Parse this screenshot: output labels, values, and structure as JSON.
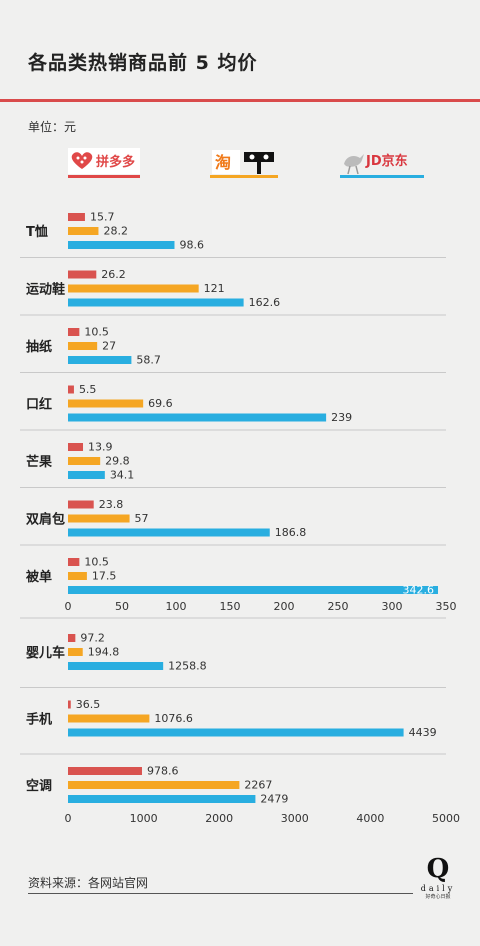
{
  "title": "各品类热销商品前 5 均价",
  "unit_label": "单位：元",
  "source": "资料来源：各网站官网",
  "brand": {
    "mark": "Q",
    "name": "daily",
    "slogan": "好奇心日报"
  },
  "platforms": [
    {
      "name": "拼多多",
      "color": "#d9534f"
    },
    {
      "name": "淘",
      "color": "#f5a623"
    },
    {
      "name": "JD京东",
      "color": "#29aee0"
    }
  ],
  "chart_data": [
    {
      "type": "bar",
      "orientation": "horizontal",
      "categories": [
        "T恤",
        "运动鞋",
        "抽纸",
        "口红",
        "芒果",
        "双肩包",
        "被单"
      ],
      "series": [
        {
          "name": "拼多多",
          "color": "#d9534f",
          "values": [
            15.7,
            26.2,
            10.5,
            5.5,
            13.9,
            23.8,
            10.5
          ]
        },
        {
          "name": "淘",
          "color": "#f5a623",
          "values": [
            28.2,
            121,
            27,
            69.6,
            29.8,
            57,
            17.5
          ]
        },
        {
          "name": "JD京东",
          "color": "#29aee0",
          "values": [
            98.6,
            162.6,
            58.7,
            239,
            34.1,
            186.8,
            342.6
          ]
        }
      ],
      "value_labels": [
        [
          "15.7",
          "26.2",
          "10.5",
          "5.5",
          "13.9",
          "23.8",
          "10.5"
        ],
        [
          "28.2",
          "121",
          "27",
          "69.6",
          "29.8",
          "57",
          "17.5"
        ],
        [
          "98.6",
          "162.6",
          "58.7",
          "239",
          "34.1",
          "186.8",
          "342.6"
        ]
      ],
      "xlim": [
        0,
        350
      ],
      "xticks": [
        0,
        50,
        100,
        150,
        200,
        250,
        300,
        350
      ],
      "tick_labels": [
        "0",
        "50",
        "100",
        "150",
        "200",
        "250",
        "300",
        "350"
      ],
      "grid": false
    },
    {
      "type": "bar",
      "orientation": "horizontal",
      "categories": [
        "婴儿车",
        "手机",
        "空调"
      ],
      "series": [
        {
          "name": "拼多多",
          "color": "#d9534f",
          "values": [
            97.2,
            36.5,
            978.6
          ]
        },
        {
          "name": "淘",
          "color": "#f5a623",
          "values": [
            194.8,
            1076.6,
            2267
          ]
        },
        {
          "name": "JD京东",
          "color": "#29aee0",
          "values": [
            1258.8,
            4439,
            2479
          ]
        }
      ],
      "value_labels": [
        [
          "97.2",
          "36.5",
          "978.6"
        ],
        [
          "194.8",
          "1076.6",
          "2267"
        ],
        [
          "1258.8",
          "4439",
          "2479"
        ]
      ],
      "xlim": [
        0,
        5000
      ],
      "xticks": [
        0,
        1000,
        2000,
        3000,
        4000,
        5000
      ],
      "tick_labels": [
        "0",
        "1000",
        "2000",
        "3000",
        "4000",
        "5000"
      ],
      "grid": false
    }
  ]
}
